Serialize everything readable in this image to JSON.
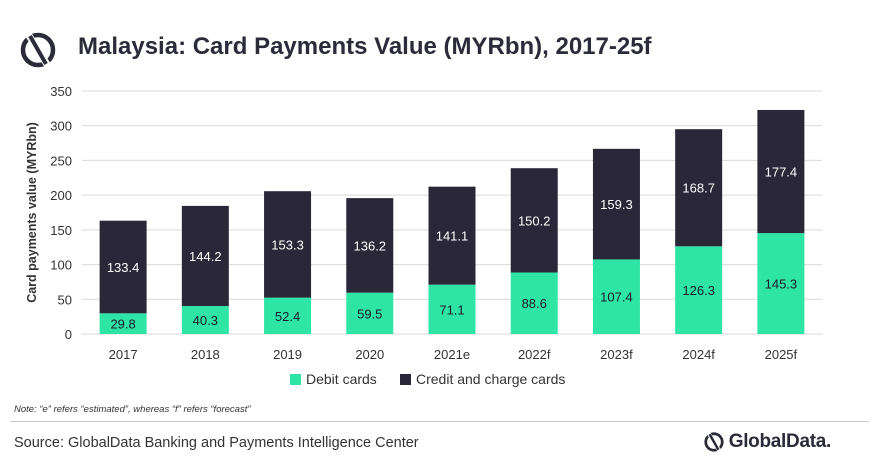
{
  "header": {
    "title": "Malaysia: Card Payments Value (MYRbn), 2017-25f",
    "logo_icon": "globaldata-logo-icon"
  },
  "chart_data": {
    "type": "bar",
    "stacked": true,
    "title": "Malaysia: Card Payments Value (MYRbn), 2017-25f",
    "xlabel": "",
    "ylabel": "Card payments value (MYRbn)",
    "ylim": [
      0,
      350
    ],
    "yticks": [
      0,
      50,
      100,
      150,
      200,
      250,
      300,
      350
    ],
    "grid": true,
    "legend_position": "bottom-center",
    "categories": [
      "2017",
      "2018",
      "2019",
      "2020",
      "2021e",
      "2022f",
      "2023f",
      "2024f",
      "2025f"
    ],
    "series": [
      {
        "name": "Debit cards",
        "color": "#2ee5a5",
        "values": [
          29.8,
          40.3,
          52.4,
          59.5,
          71.1,
          88.6,
          107.4,
          126.3,
          145.3
        ]
      },
      {
        "name": "Credit and charge cards",
        "color": "#2a2838",
        "values": [
          133.4,
          144.2,
          153.3,
          136.2,
          141.1,
          150.2,
          159.3,
          168.7,
          177.4
        ]
      }
    ]
  },
  "footer": {
    "note": "Note: “e” refers “estimated”, whereas “f” refers “forecast”",
    "source": "Source: GlobalData Banking and Payments Intelligence Center",
    "brand": "GlobalData."
  },
  "colors": {
    "debit": "#2ee5a5",
    "credit": "#2a2838",
    "grid": "#d9d9d9",
    "title": "#2b2b3a"
  }
}
